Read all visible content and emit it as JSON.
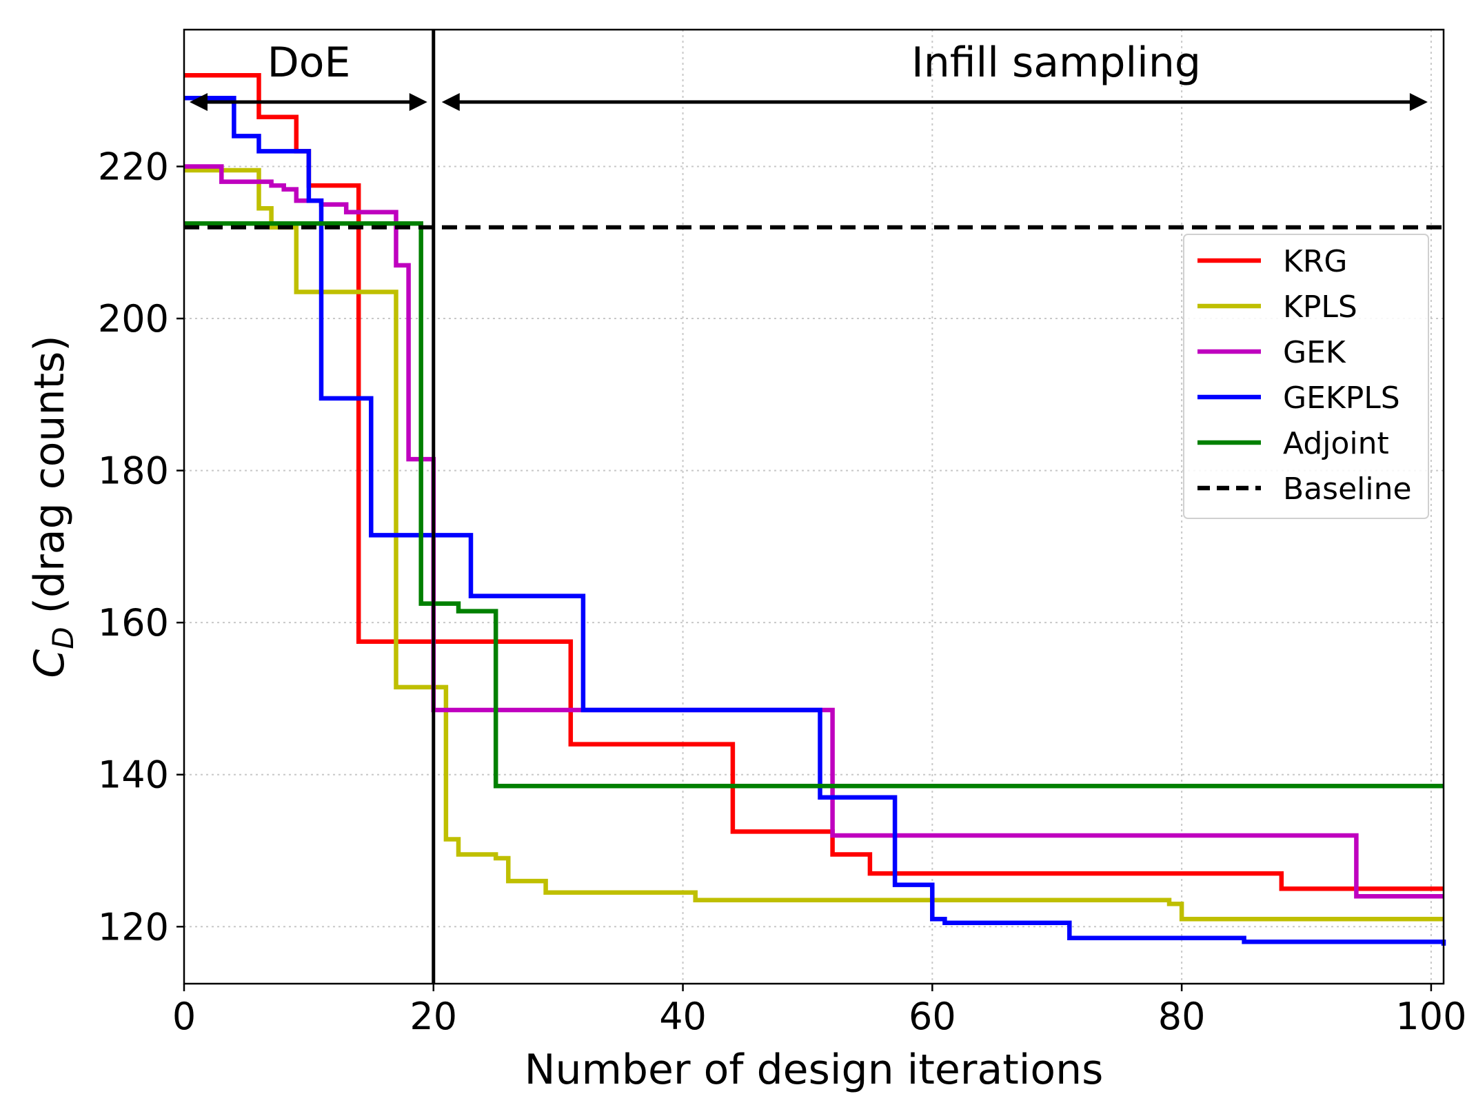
{
  "chart_data": {
    "type": "line",
    "step": "post",
    "title": "",
    "xlabel": "Number of design iterations",
    "ylabel_main": "C",
    "ylabel_sub": "D",
    "ylabel_rest": " (drag counts)",
    "xlim": [
      0,
      101
    ],
    "ylim": [
      112.5,
      238
    ],
    "xticks": [
      0,
      20,
      40,
      60,
      80,
      100
    ],
    "yticks": [
      120,
      140,
      160,
      180,
      200,
      220
    ],
    "grid": true,
    "legend_position": "upper-right",
    "annotations": {
      "doe_label": "DoE",
      "infill_label": "Infill sampling",
      "divider_x": 20,
      "doe_range": [
        0,
        20
      ],
      "infill_range": [
        20,
        100
      ]
    },
    "series": [
      {
        "name": "KRG",
        "color": "#ff0000",
        "dash": false,
        "points": [
          [
            0,
            232
          ],
          [
            6,
            226.5
          ],
          [
            9,
            222
          ],
          [
            10,
            217.5
          ],
          [
            14,
            157.5
          ],
          [
            31,
            144
          ],
          [
            44,
            132.5
          ],
          [
            52,
            129.5
          ],
          [
            55,
            127
          ],
          [
            82,
            127
          ],
          [
            88,
            125
          ],
          [
            101,
            125
          ]
        ]
      },
      {
        "name": "KPLS",
        "color": "#bfbf00",
        "dash": false,
        "points": [
          [
            0,
            219.5
          ],
          [
            6,
            214.5
          ],
          [
            7,
            212
          ],
          [
            9,
            203.5
          ],
          [
            17,
            151.5
          ],
          [
            21,
            131.5
          ],
          [
            22,
            129.5
          ],
          [
            25,
            129
          ],
          [
            26,
            126
          ],
          [
            29,
            124.5
          ],
          [
            41,
            123.5
          ],
          [
            79,
            123
          ],
          [
            80,
            121
          ],
          [
            101,
            121
          ]
        ]
      },
      {
        "name": "GEK",
        "color": "#bf00bf",
        "dash": false,
        "points": [
          [
            0,
            220
          ],
          [
            3,
            218
          ],
          [
            7,
            217.5
          ],
          [
            8,
            217
          ],
          [
            9,
            215.5
          ],
          [
            11,
            215
          ],
          [
            13,
            214
          ],
          [
            17,
            207
          ],
          [
            18,
            181.5
          ],
          [
            20,
            148.5
          ],
          [
            52,
            132
          ],
          [
            94,
            124
          ],
          [
            101,
            124
          ]
        ]
      },
      {
        "name": "GEKPLS",
        "color": "#0000ff",
        "dash": false,
        "points": [
          [
            0,
            229
          ],
          [
            4,
            224
          ],
          [
            6,
            222
          ],
          [
            10,
            215.5
          ],
          [
            11,
            189.5
          ],
          [
            15,
            171.5
          ],
          [
            23,
            163.5
          ],
          [
            32,
            148.5
          ],
          [
            51,
            137
          ],
          [
            57,
            125.5
          ],
          [
            60,
            121
          ],
          [
            61,
            120.5
          ],
          [
            71,
            118.5
          ],
          [
            85,
            118
          ],
          [
            101,
            117.5
          ]
        ]
      },
      {
        "name": "Adjoint",
        "color": "#008000",
        "dash": false,
        "points": [
          [
            0,
            212.5
          ],
          [
            19,
            162.5
          ],
          [
            22,
            161.5
          ],
          [
            25,
            138.5
          ],
          [
            101,
            138.5
          ]
        ]
      },
      {
        "name": "Baseline",
        "color": "#000000",
        "dash": true,
        "points": [
          [
            0,
            212
          ],
          [
            101,
            212
          ]
        ]
      }
    ]
  }
}
